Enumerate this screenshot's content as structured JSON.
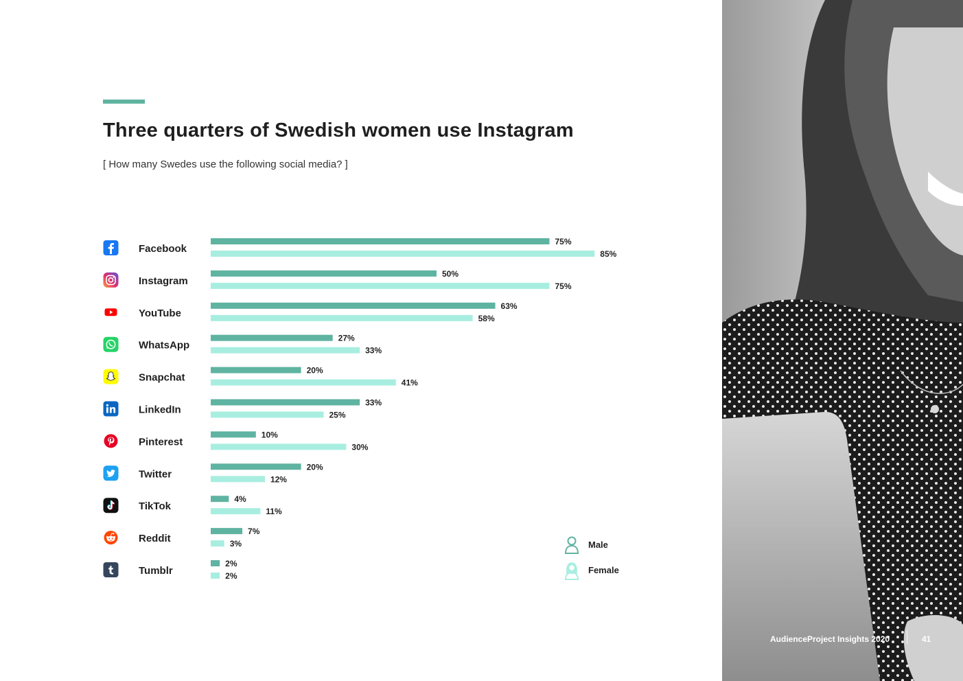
{
  "header": {
    "title": "Three quarters of Swedish women use Instagram",
    "subtitle": "[ How many Swedes use the following social media? ]"
  },
  "colors": {
    "male": "#5fb3a1",
    "female": "#a8eee0",
    "accent": "#5fb3a1"
  },
  "legend": {
    "male": "Male",
    "female": "Female"
  },
  "chart_data": {
    "type": "bar",
    "orientation": "horizontal",
    "title": "Three quarters of Swedish women use Instagram",
    "subtitle": "[ How many Swedes use the following social media? ]",
    "categories": [
      "Facebook",
      "Instagram",
      "YouTube",
      "WhatsApp",
      "Snapchat",
      "LinkedIn",
      "Pinterest",
      "Twitter",
      "TikTok",
      "Reddit",
      "Tumblr"
    ],
    "icons": [
      "facebook-icon",
      "instagram-icon",
      "youtube-icon",
      "whatsapp-icon",
      "snapchat-icon",
      "linkedin-icon",
      "pinterest-icon",
      "twitter-icon",
      "tiktok-icon",
      "reddit-icon",
      "tumblr-icon"
    ],
    "series": [
      {
        "name": "Male",
        "values": [
          75,
          50,
          63,
          27,
          20,
          33,
          10,
          20,
          4,
          7,
          2
        ]
      },
      {
        "name": "Female",
        "values": [
          85,
          75,
          58,
          33,
          41,
          25,
          30,
          12,
          11,
          3,
          2
        ]
      }
    ],
    "value_format": "{v}%",
    "xlim": [
      0,
      100
    ],
    "legend_position": "bottom-right",
    "grid": false
  },
  "footer": {
    "publication": "AudienceProject Insights 2020",
    "page": "41"
  }
}
